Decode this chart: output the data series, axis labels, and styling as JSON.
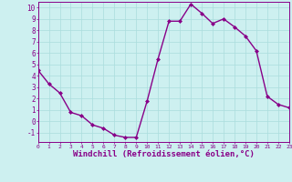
{
  "x": [
    0,
    1,
    2,
    3,
    4,
    5,
    6,
    7,
    8,
    9,
    10,
    11,
    12,
    13,
    14,
    15,
    16,
    17,
    18,
    19,
    20,
    21,
    22,
    23
  ],
  "y": [
    4.5,
    3.3,
    2.5,
    0.8,
    0.5,
    -0.3,
    -0.6,
    -1.2,
    -1.4,
    -1.4,
    1.8,
    5.5,
    8.8,
    8.8,
    10.3,
    9.5,
    8.6,
    9.0,
    8.3,
    7.5,
    6.2,
    2.2,
    1.5,
    1.2
  ],
  "line_color": "#880088",
  "marker": "D",
  "marker_size": 2.0,
  "linewidth": 1.0,
  "xlabel": "Windchill (Refroidissement éolien,°C)",
  "xlabel_fontsize": 6.5,
  "bg_color": "#cdf0f0",
  "grid_color": "#aadddd",
  "tick_color": "#880088",
  "spine_color": "#880088",
  "xlim": [
    0,
    23
  ],
  "ylim": [
    -1.8,
    10.5
  ],
  "yticks": [
    -1,
    0,
    1,
    2,
    3,
    4,
    5,
    6,
    7,
    8,
    9,
    10
  ],
  "xticks": [
    0,
    1,
    2,
    3,
    4,
    5,
    6,
    7,
    8,
    9,
    10,
    11,
    12,
    13,
    14,
    15,
    16,
    17,
    18,
    19,
    20,
    21,
    22,
    23
  ]
}
